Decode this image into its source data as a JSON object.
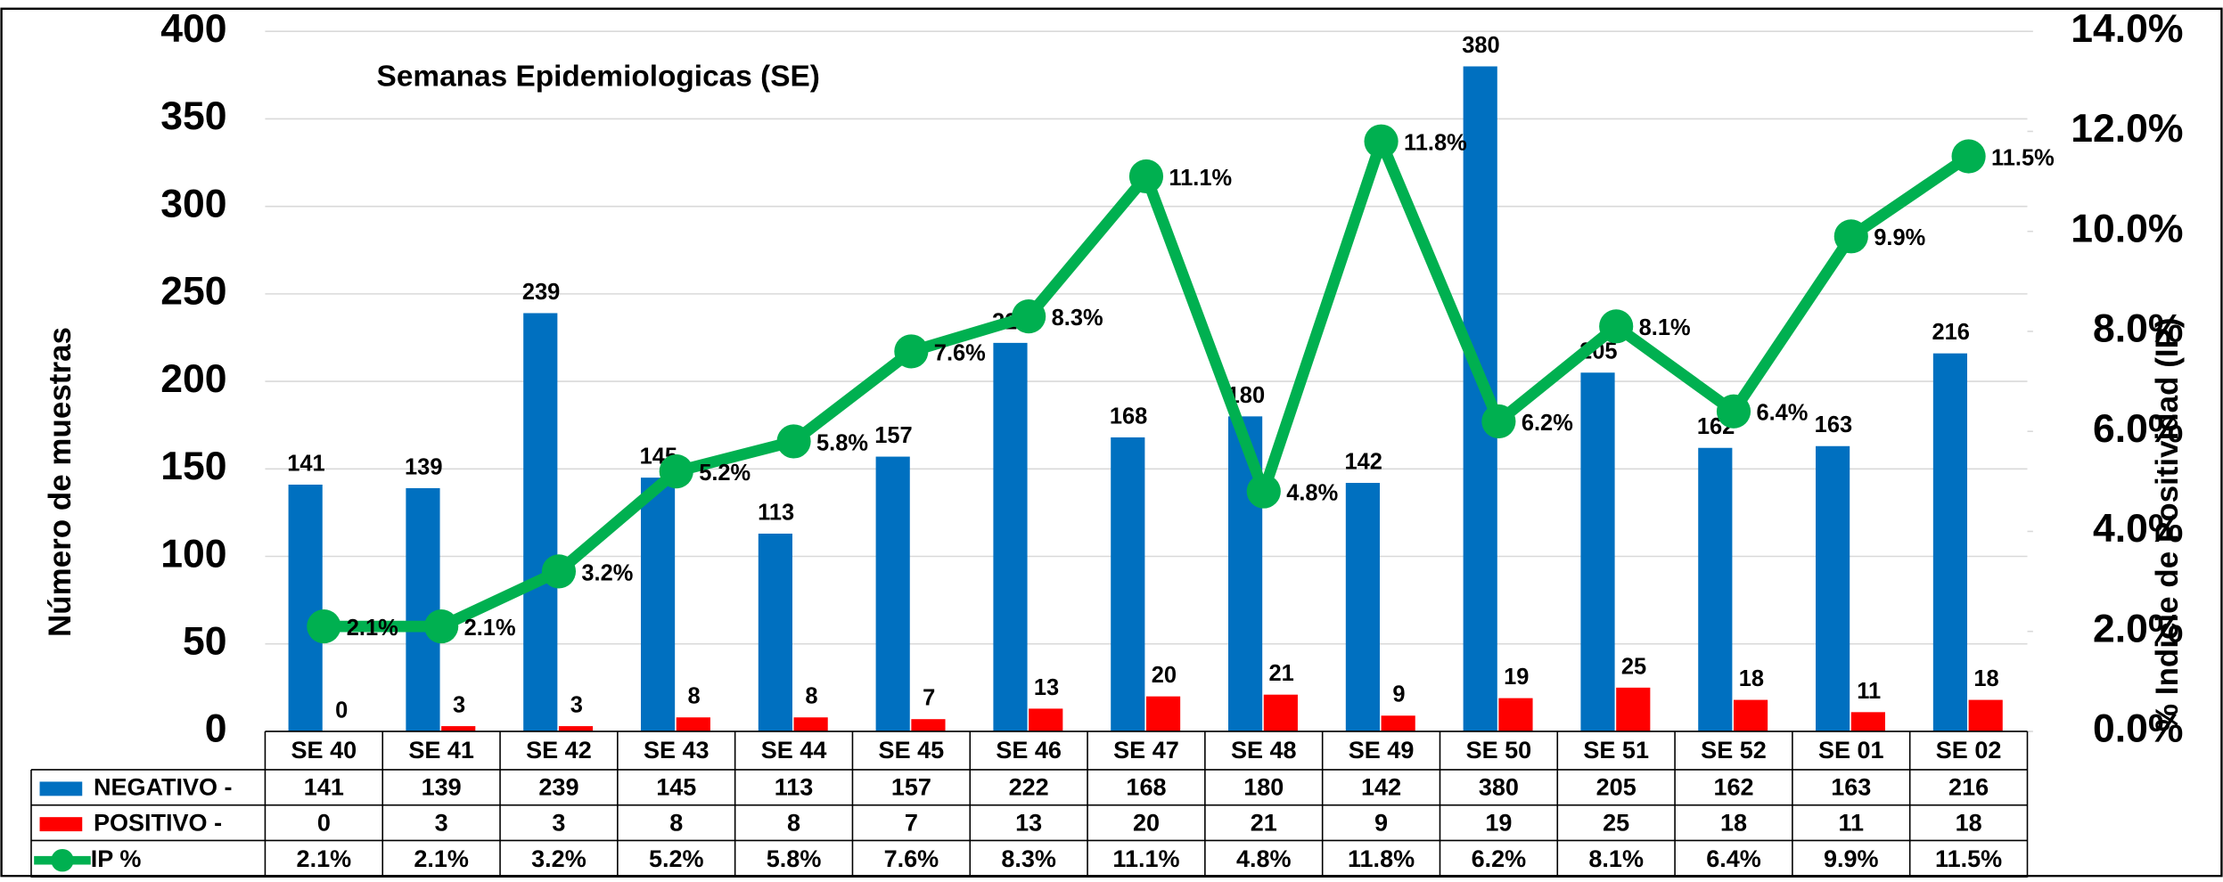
{
  "chart_data": {
    "type": "bar-line-table",
    "title": "Semanas Epidemiologicas (SE)",
    "y_label": "Número de muestras",
    "y2_label": "% Indicie de Positividad (IP)",
    "categories": [
      "SE 40",
      "SE 41",
      "SE 42",
      "SE 43",
      "SE 44",
      "SE 45",
      "SE 46",
      "SE 47",
      "SE 48",
      "SE 49",
      "SE 50",
      "SE 51",
      "SE 52",
      "SE 01",
      "SE 02"
    ],
    "series": [
      {
        "name": "NEGATIVO -",
        "color": "#0070c0",
        "type": "bar",
        "values": [
          141,
          139,
          239,
          145,
          113,
          157,
          222,
          168,
          180,
          142,
          380,
          205,
          162,
          163,
          216
        ]
      },
      {
        "name": "POSITIVO -",
        "color": "#ff0000",
        "type": "bar",
        "values": [
          0,
          3,
          3,
          8,
          8,
          7,
          13,
          20,
          21,
          9,
          19,
          25,
          18,
          11,
          18
        ]
      },
      {
        "name": "IP %",
        "color": "#00b050",
        "type": "line",
        "axis": "y2",
        "values": [
          2.1,
          2.1,
          3.2,
          5.2,
          5.8,
          7.6,
          8.3,
          11.1,
          4.8,
          11.8,
          6.2,
          8.1,
          6.4,
          9.9,
          11.5
        ],
        "value_labels": [
          "2.1%",
          "2.1%",
          "3.2%",
          "5.2%",
          "5.8%",
          "7.6%",
          "8.3%",
          "11.1%",
          "4.8%",
          "11.8%",
          "6.2%",
          "8.1%",
          "6.4%",
          "9.9%",
          "11.5%"
        ]
      }
    ],
    "ylim": [
      0,
      400
    ],
    "yticks": [
      0,
      50,
      100,
      150,
      200,
      250,
      300,
      350,
      400
    ],
    "y2lim": [
      0,
      14
    ],
    "y2ticks": [
      {
        "value": 0,
        "label": "0.0%"
      },
      {
        "value": 2,
        "label": "2.0%"
      },
      {
        "value": 4,
        "label": "4.0%"
      },
      {
        "value": 6,
        "label": "6.0%"
      },
      {
        "value": 8,
        "label": "8.0%"
      },
      {
        "value": 10,
        "label": "10.0%"
      },
      {
        "value": 12,
        "label": "12.0%"
      },
      {
        "value": 14,
        "label": "14.0%"
      }
    ],
    "grid": true
  }
}
